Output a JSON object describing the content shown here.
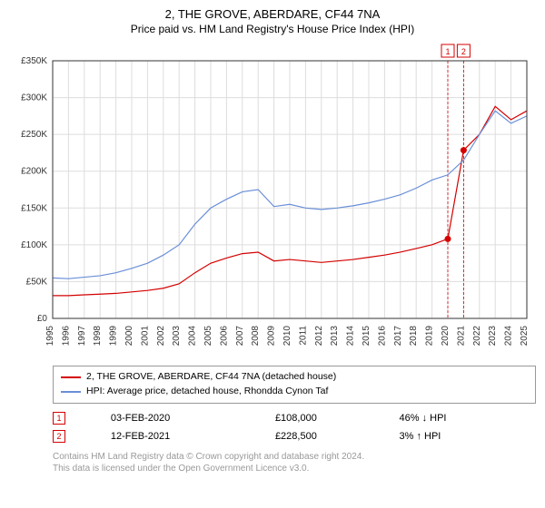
{
  "title": "2, THE GROVE, ABERDARE, CF44 7NA",
  "subtitle": "Price paid vs. HM Land Registry's House Price Index (HPI)",
  "chart": {
    "type": "line",
    "background_color": "#ffffff",
    "grid_color": "#dddddd",
    "axis_color": "#333333",
    "axis_fontsize": 10,
    "ylim": [
      0,
      350000
    ],
    "ytick_step": 50000,
    "yticks": [
      "£0",
      "£50K",
      "£100K",
      "£150K",
      "£200K",
      "£250K",
      "£300K",
      "£350K"
    ],
    "xlim": [
      1995,
      2025
    ],
    "xticks": [
      1995,
      1996,
      1997,
      1998,
      1999,
      2000,
      2001,
      2002,
      2003,
      2004,
      2005,
      2006,
      2007,
      2008,
      2009,
      2010,
      2011,
      2012,
      2013,
      2014,
      2015,
      2016,
      2017,
      2018,
      2019,
      2020,
      2021,
      2022,
      2023,
      2024,
      2025
    ],
    "series": [
      {
        "name": "house",
        "color": "#d40000",
        "line_width": 1.2,
        "points": [
          [
            1995,
            31000
          ],
          [
            1996,
            31000
          ],
          [
            1997,
            32000
          ],
          [
            1998,
            33000
          ],
          [
            1999,
            34000
          ],
          [
            2000,
            36000
          ],
          [
            2001,
            38000
          ],
          [
            2002,
            41000
          ],
          [
            2003,
            47000
          ],
          [
            2004,
            62000
          ],
          [
            2005,
            75000
          ],
          [
            2006,
            82000
          ],
          [
            2007,
            88000
          ],
          [
            2008,
            90000
          ],
          [
            2009,
            78000
          ],
          [
            2010,
            80000
          ],
          [
            2011,
            78000
          ],
          [
            2012,
            76000
          ],
          [
            2013,
            78000
          ],
          [
            2014,
            80000
          ],
          [
            2015,
            83000
          ],
          [
            2016,
            86000
          ],
          [
            2017,
            90000
          ],
          [
            2018,
            95000
          ],
          [
            2019,
            100000
          ],
          [
            2020,
            108000
          ],
          [
            2021,
            228500
          ],
          [
            2022,
            250000
          ],
          [
            2023,
            288000
          ],
          [
            2024,
            270000
          ],
          [
            2025,
            282000
          ]
        ]
      },
      {
        "name": "hpi",
        "color": "#6a8fd8",
        "line_width": 1.2,
        "points": [
          [
            1995,
            55000
          ],
          [
            1996,
            54000
          ],
          [
            1997,
            56000
          ],
          [
            1998,
            58000
          ],
          [
            1999,
            62000
          ],
          [
            2000,
            68000
          ],
          [
            2001,
            75000
          ],
          [
            2002,
            86000
          ],
          [
            2003,
            100000
          ],
          [
            2004,
            128000
          ],
          [
            2005,
            150000
          ],
          [
            2006,
            162000
          ],
          [
            2007,
            172000
          ],
          [
            2008,
            175000
          ],
          [
            2009,
            152000
          ],
          [
            2010,
            155000
          ],
          [
            2011,
            150000
          ],
          [
            2012,
            148000
          ],
          [
            2013,
            150000
          ],
          [
            2014,
            153000
          ],
          [
            2015,
            157000
          ],
          [
            2016,
            162000
          ],
          [
            2017,
            168000
          ],
          [
            2018,
            177000
          ],
          [
            2019,
            188000
          ],
          [
            2020,
            195000
          ],
          [
            2021,
            215000
          ],
          [
            2022,
            250000
          ],
          [
            2023,
            282000
          ],
          [
            2024,
            265000
          ],
          [
            2025,
            275000
          ]
        ]
      }
    ],
    "markers": [
      {
        "n": "1",
        "x": 2020,
        "y": 108000,
        "box_color": "#d40000"
      },
      {
        "n": "2",
        "x": 2021,
        "y": 228500,
        "box_color": "#d40000"
      }
    ],
    "marker_top_boxes": [
      {
        "n": "1",
        "x": 2020,
        "color": "#d40000"
      },
      {
        "n": "2",
        "x": 2021,
        "color": "#d40000"
      }
    ]
  },
  "legend": {
    "items": [
      {
        "color": "#d40000",
        "label": "2, THE GROVE, ABERDARE, CF44 7NA (detached house)"
      },
      {
        "color": "#6a8fd8",
        "label": "HPI: Average price, detached house, Rhondda Cynon Taf"
      }
    ]
  },
  "transactions": [
    {
      "n": "1",
      "date": "03-FEB-2020",
      "price": "£108,000",
      "pct": "46%",
      "arrow": "↓",
      "vs": "HPI",
      "color": "#d40000"
    },
    {
      "n": "2",
      "date": "12-FEB-2021",
      "price": "£228,500",
      "pct": "3%",
      "arrow": "↑",
      "vs": "HPI",
      "color": "#d40000"
    }
  ],
  "footer": {
    "line1": "Contains HM Land Registry data © Crown copyright and database right 2024.",
    "line2": "This data is licensed under the Open Government Licence v3.0."
  }
}
